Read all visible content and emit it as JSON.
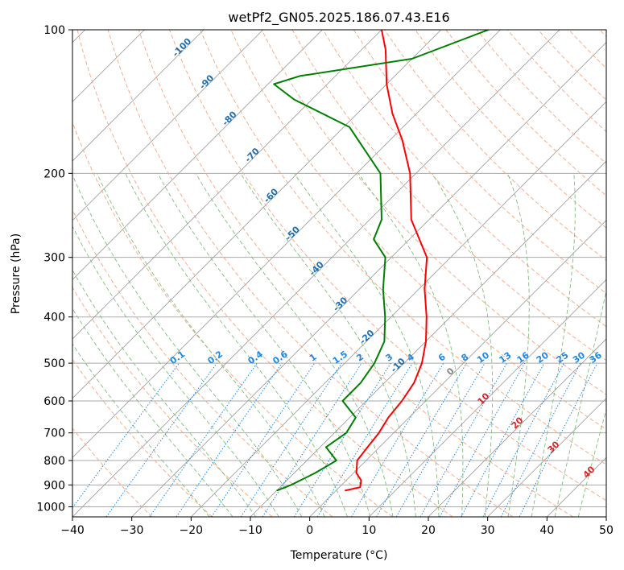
{
  "chart_data": {
    "type": "line",
    "title": "wetPf2_GN05.2025.186.07.43.E16",
    "xlabel": "Temperature (°C)",
    "ylabel": "Pressure (hPa)",
    "xlim": [
      -40,
      50
    ],
    "ylim": [
      1050,
      100
    ],
    "y_scale": "log",
    "grid": true,
    "x_ticks": [
      -40,
      -30,
      -20,
      -10,
      0,
      10,
      20,
      30,
      40,
      50
    ],
    "y_ticks": [
      100,
      200,
      300,
      400,
      500,
      600,
      700,
      800,
      900,
      1000
    ],
    "series": [
      {
        "color": "#ff0000",
        "points": [
          [
            1.5,
            925
          ],
          [
            3.5,
            910
          ],
          [
            2.5,
            880
          ],
          [
            0.5,
            850
          ],
          [
            -1.5,
            800
          ],
          [
            -2,
            750
          ],
          [
            -2.5,
            700
          ],
          [
            -3.5,
            650
          ],
          [
            -4,
            600
          ],
          [
            -5,
            550
          ],
          [
            -7,
            500
          ],
          [
            -10,
            450
          ],
          [
            -14,
            400
          ],
          [
            -19,
            350
          ],
          [
            -24,
            300
          ],
          [
            -33,
            250
          ],
          [
            -41,
            200
          ],
          [
            -48,
            170
          ],
          [
            -54,
            150
          ],
          [
            -60,
            130
          ],
          [
            -66,
            110
          ],
          [
            -70,
            100
          ]
        ]
      },
      {
        "color": "#008000",
        "points": [
          [
            -10,
            925
          ],
          [
            -8.5,
            900
          ],
          [
            -6.5,
            850
          ],
          [
            -5,
            800
          ],
          [
            -9,
            750
          ],
          [
            -8,
            700
          ],
          [
            -9,
            650
          ],
          [
            -14,
            600
          ],
          [
            -14,
            550
          ],
          [
            -15,
            500
          ],
          [
            -17,
            450
          ],
          [
            -21,
            400
          ],
          [
            -26,
            350
          ],
          [
            -31,
            300
          ],
          [
            -36,
            275
          ],
          [
            -38,
            250
          ],
          [
            -46,
            200
          ],
          [
            -59,
            160
          ],
          [
            -73,
            140
          ],
          [
            -79,
            130
          ],
          [
            -76,
            125
          ],
          [
            -60,
            115
          ],
          [
            -52,
            100
          ]
        ]
      }
    ],
    "mixing_ratio_labels": [
      "0.1",
      "0.2",
      "0.4",
      "0.6",
      "1",
      "1.5",
      "2",
      "3",
      "4",
      "6",
      "8",
      "10",
      "13",
      "16",
      "20",
      "25",
      "30",
      "36"
    ],
    "mixing_ratio_values": [
      0.1,
      0.2,
      0.4,
      0.6,
      1,
      1.5,
      2,
      3,
      4,
      6,
      8,
      10,
      13,
      16,
      20,
      25,
      30,
      36
    ],
    "dry_adiabat_labels": [
      "-100",
      "-90",
      "-80",
      "-70",
      "-60",
      "-50",
      "-40",
      "-30",
      "-20",
      "-10"
    ],
    "moist_adiabat_labels": [
      "0",
      "10",
      "20",
      "30",
      "40"
    ],
    "colors": {
      "temperature": "#ff0000",
      "dewpoint": "#008000",
      "dry_adiabat": "#f4a582",
      "moist_adiabat": "#7fbf7b",
      "mixing_ratio": "#1e88e5",
      "isotherm": "#999999",
      "isobar": "#aaaaaa"
    }
  }
}
